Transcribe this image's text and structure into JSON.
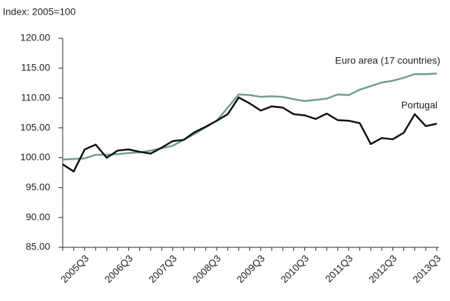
{
  "chart_data": {
    "type": "line",
    "subtitle": "Index: 2005=100",
    "categories": [
      null,
      null,
      "2005Q3",
      null,
      null,
      null,
      "2006Q3",
      null,
      null,
      null,
      "2007Q3",
      null,
      null,
      null,
      "2008Q3",
      null,
      null,
      null,
      "2009Q3",
      null,
      null,
      null,
      "2010Q3",
      null,
      null,
      null,
      "2011Q3",
      null,
      null,
      null,
      "2012Q3",
      null,
      null,
      null,
      "2013Q3"
    ],
    "series": [
      {
        "name": "Euro area (17 countries)",
        "color": "#6f9e8c",
        "values": [
          99.7,
          99.8,
          99.9,
          100.5,
          100.5,
          100.6,
          100.8,
          100.9,
          101.2,
          101.6,
          102.0,
          103.0,
          104.0,
          105.1,
          106.2,
          108.4,
          110.6,
          110.5,
          110.2,
          110.3,
          110.2,
          109.8,
          109.5,
          109.7,
          109.9,
          110.6,
          110.5,
          111.4,
          112.0,
          112.6,
          112.9,
          113.4,
          114.0,
          114.0,
          114.1
        ]
      },
      {
        "name": "Portugal",
        "color": "#111111",
        "values": [
          98.9,
          97.7,
          101.4,
          102.2,
          100.0,
          101.2,
          101.4,
          101.0,
          100.7,
          101.7,
          102.8,
          103.0,
          104.3,
          105.2,
          106.2,
          107.3,
          110.1,
          109.1,
          107.9,
          108.6,
          108.4,
          107.3,
          107.1,
          106.5,
          107.4,
          106.3,
          106.2,
          105.8,
          102.3,
          103.3,
          103.1,
          104.2,
          107.3,
          105.3,
          105.7
        ]
      }
    ],
    "ylim": [
      85,
      120
    ],
    "yticks": [
      {
        "value": 85,
        "label": "85.00"
      },
      {
        "value": 90,
        "label": "90.00"
      },
      {
        "value": 95,
        "label": "95.00"
      },
      {
        "value": 100,
        "label": "100.00"
      },
      {
        "value": 105,
        "label": "105.00"
      },
      {
        "value": 110,
        "label": "110.00"
      },
      {
        "value": 115,
        "label": "115.00"
      },
      {
        "value": 120,
        "label": "120.00"
      }
    ],
    "grid": false
  }
}
